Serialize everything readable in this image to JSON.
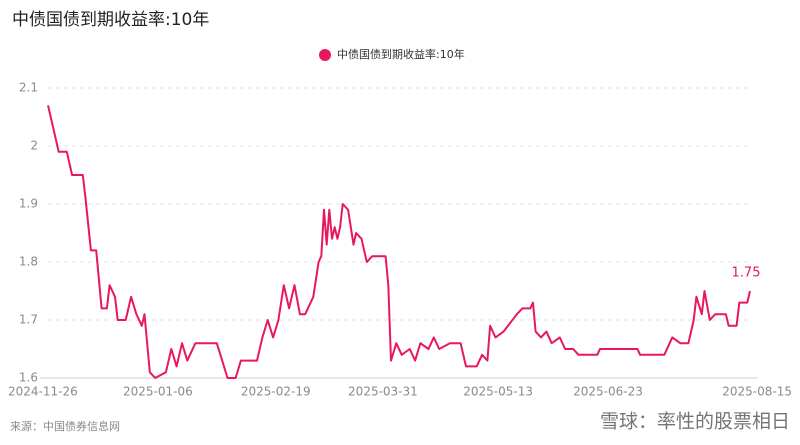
{
  "chart_data": {
    "type": "line",
    "title": "中债国债到期收益率:10年",
    "source": "来源：中国债券信息网",
    "watermark": "雪球：率性的股票相日",
    "legend": "top",
    "grid": true,
    "ylim": [
      1.6,
      2.1
    ],
    "yticks": [
      1.6,
      1.7,
      1.8,
      1.9,
      2,
      2.1
    ],
    "xlim": [
      "2024-11-26",
      "2025-08-15"
    ],
    "xticks": [
      "2024-11-26",
      "2025-01-06",
      "2025-02-19",
      "2025-03-31",
      "2025-05-13",
      "2025-06-23",
      "2025-08-15"
    ],
    "x": [
      "2024-11-26",
      "2024-11-28",
      "2024-11-30",
      "2024-12-03",
      "2024-12-05",
      "2024-12-09",
      "2024-12-10",
      "2024-12-12",
      "2024-12-14",
      "2024-12-16",
      "2024-12-18",
      "2024-12-19",
      "2024-12-21",
      "2024-12-22",
      "2024-12-25",
      "2024-12-27",
      "2024-12-29",
      "2024-12-31",
      "2025-01-01",
      "2025-01-03",
      "2025-01-05",
      "2025-01-09",
      "2025-01-11",
      "2025-01-13",
      "2025-01-15",
      "2025-01-17",
      "2025-01-20",
      "2025-01-28",
      "2025-01-30",
      "2025-02-01",
      "2025-02-04",
      "2025-02-06",
      "2025-02-12",
      "2025-02-14",
      "2025-02-16",
      "2025-02-18",
      "2025-02-20",
      "2025-02-22",
      "2025-02-24",
      "2025-02-26",
      "2025-02-28",
      "2025-03-02",
      "2025-03-05",
      "2025-03-07",
      "2025-03-08",
      "2025-03-09",
      "2025-03-10",
      "2025-03-11",
      "2025-03-12",
      "2025-03-13",
      "2025-03-14",
      "2025-03-15",
      "2025-03-16",
      "2025-03-18",
      "2025-03-20",
      "2025-03-21",
      "2025-03-23",
      "2025-03-25",
      "2025-03-27",
      "2025-04-01",
      "2025-04-02",
      "2025-04-03",
      "2025-04-05",
      "2025-04-07",
      "2025-04-10",
      "2025-04-12",
      "2025-04-14",
      "2025-04-17",
      "2025-04-19",
      "2025-04-21",
      "2025-04-25",
      "2025-04-29",
      "2025-05-01",
      "2025-05-05",
      "2025-05-07",
      "2025-05-09",
      "2025-05-10",
      "2025-05-12",
      "2025-05-15",
      "2025-05-20",
      "2025-05-22",
      "2025-05-25",
      "2025-05-26",
      "2025-05-27",
      "2025-05-29",
      "2025-05-31",
      "2025-06-02",
      "2025-06-05",
      "2025-06-07",
      "2025-06-10",
      "2025-06-12",
      "2025-06-19",
      "2025-06-20",
      "2025-07-04",
      "2025-07-05",
      "2025-07-14",
      "2025-07-17",
      "2025-07-20",
      "2025-07-23",
      "2025-07-25",
      "2025-07-26",
      "2025-07-28",
      "2025-07-29",
      "2025-07-31",
      "2025-08-02",
      "2025-08-06",
      "2025-08-07",
      "2025-08-10",
      "2025-08-11",
      "2025-08-14",
      "2025-08-15"
    ],
    "series": [
      {
        "name": "中债国债到期收益率:10年",
        "color": "#e8185c",
        "values": [
          2.07,
          2.03,
          1.99,
          1.99,
          1.95,
          1.95,
          1.91,
          1.82,
          1.82,
          1.72,
          1.72,
          1.76,
          1.74,
          1.7,
          1.7,
          1.74,
          1.71,
          1.69,
          1.71,
          1.61,
          1.6,
          1.61,
          1.65,
          1.62,
          1.66,
          1.63,
          1.66,
          1.66,
          1.63,
          1.6,
          1.6,
          1.63,
          1.63,
          1.67,
          1.7,
          1.67,
          1.7,
          1.76,
          1.72,
          1.76,
          1.71,
          1.71,
          1.74,
          1.8,
          1.81,
          1.89,
          1.83,
          1.89,
          1.84,
          1.86,
          1.84,
          1.86,
          1.9,
          1.89,
          1.83,
          1.85,
          1.84,
          1.8,
          1.81,
          1.81,
          1.76,
          1.63,
          1.66,
          1.64,
          1.65,
          1.63,
          1.66,
          1.65,
          1.67,
          1.65,
          1.66,
          1.66,
          1.62,
          1.62,
          1.64,
          1.63,
          1.69,
          1.67,
          1.68,
          1.71,
          1.72,
          1.72,
          1.73,
          1.68,
          1.67,
          1.68,
          1.66,
          1.67,
          1.65,
          1.65,
          1.64,
          1.64,
          1.65,
          1.65,
          1.64,
          1.64,
          1.67,
          1.66,
          1.66,
          1.7,
          1.74,
          1.71,
          1.75,
          1.7,
          1.71,
          1.71,
          1.69,
          1.69,
          1.73,
          1.73,
          1.75
        ]
      }
    ]
  }
}
